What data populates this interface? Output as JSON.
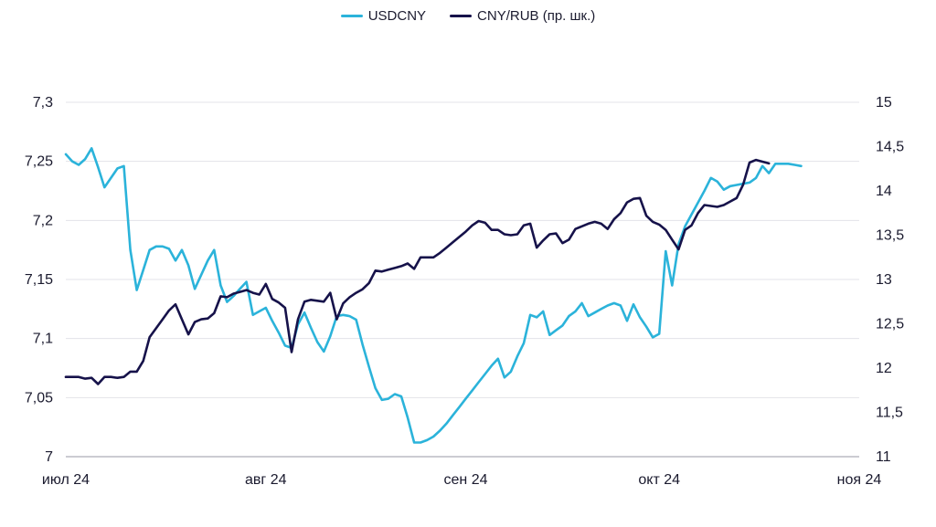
{
  "chart_data": {
    "type": "line",
    "x_ticks": [
      "июл 24",
      "авг 24",
      "сен 24",
      "окт 24",
      "ноя 24"
    ],
    "y_left": {
      "ticks": [
        "7",
        "7,05",
        "7,1",
        "7,15",
        "7,2",
        "7,25",
        "7,3"
      ],
      "range": [
        7.0,
        7.3
      ]
    },
    "y_right": {
      "ticks": [
        "11",
        "11,5",
        "12",
        "12,5",
        "13",
        "13,5",
        "14",
        "14,5",
        "15"
      ],
      "range": [
        11,
        15
      ]
    },
    "legend_position": "top-center",
    "grid": "horizontal",
    "series": [
      {
        "name": "USDCNY",
        "axis": "left",
        "color": "#2BB3DA",
        "points": [
          [
            "2024-07-01",
            7.256
          ],
          [
            "2024-07-02",
            7.25
          ],
          [
            "2024-07-03",
            7.247
          ],
          [
            "2024-07-04",
            7.252
          ],
          [
            "2024-07-05",
            7.261
          ],
          [
            "2024-07-06",
            7.245
          ],
          [
            "2024-07-07",
            7.228
          ],
          [
            "2024-07-08",
            7.236
          ],
          [
            "2024-07-09",
            7.244
          ],
          [
            "2024-07-10",
            7.246
          ],
          [
            "2024-07-11",
            7.175
          ],
          [
            "2024-07-12",
            7.141
          ],
          [
            "2024-07-13",
            7.158
          ],
          [
            "2024-07-14",
            7.175
          ],
          [
            "2024-07-15",
            7.178
          ],
          [
            "2024-07-16",
            7.178
          ],
          [
            "2024-07-17",
            7.176
          ],
          [
            "2024-07-18",
            7.166
          ],
          [
            "2024-07-19",
            7.175
          ],
          [
            "2024-07-20",
            7.162
          ],
          [
            "2024-07-21",
            7.142
          ],
          [
            "2024-07-22",
            7.154
          ],
          [
            "2024-07-23",
            7.166
          ],
          [
            "2024-07-24",
            7.175
          ],
          [
            "2024-07-25",
            7.145
          ],
          [
            "2024-07-26",
            7.131
          ],
          [
            "2024-07-27",
            7.136
          ],
          [
            "2024-07-28",
            7.142
          ],
          [
            "2024-07-29",
            7.148
          ],
          [
            "2024-07-30",
            7.12
          ],
          [
            "2024-07-31",
            7.123
          ],
          [
            "2024-08-01",
            7.126
          ],
          [
            "2024-08-02",
            7.115
          ],
          [
            "2024-08-03",
            7.105
          ],
          [
            "2024-08-04",
            7.094
          ],
          [
            "2024-08-05",
            7.092
          ],
          [
            "2024-08-06",
            7.112
          ],
          [
            "2024-08-07",
            7.122
          ],
          [
            "2024-08-08",
            7.109
          ],
          [
            "2024-08-09",
            7.097
          ],
          [
            "2024-08-10",
            7.089
          ],
          [
            "2024-08-11",
            7.102
          ],
          [
            "2024-08-12",
            7.119
          ],
          [
            "2024-08-13",
            7.12
          ],
          [
            "2024-08-14",
            7.119
          ],
          [
            "2024-08-15",
            7.116
          ],
          [
            "2024-08-16",
            7.095
          ],
          [
            "2024-08-17",
            7.076
          ],
          [
            "2024-08-18",
            7.058
          ],
          [
            "2024-08-19",
            7.048
          ],
          [
            "2024-08-20",
            7.049
          ],
          [
            "2024-08-21",
            7.053
          ],
          [
            "2024-08-22",
            7.051
          ],
          [
            "2024-08-23",
            7.033
          ],
          [
            "2024-08-24",
            7.012
          ],
          [
            "2024-08-25",
            7.012
          ],
          [
            "2024-08-26",
            7.014
          ],
          [
            "2024-08-27",
            7.017
          ],
          [
            "2024-08-28",
            7.022
          ],
          [
            "2024-08-29",
            7.028
          ],
          [
            "2024-08-30",
            7.035
          ],
          [
            "2024-08-31",
            7.042
          ],
          [
            "2024-09-01",
            7.049
          ],
          [
            "2024-09-02",
            7.056
          ],
          [
            "2024-09-03",
            7.063
          ],
          [
            "2024-09-04",
            7.07
          ],
          [
            "2024-09-05",
            7.077
          ],
          [
            "2024-09-06",
            7.083
          ],
          [
            "2024-09-07",
            7.067
          ],
          [
            "2024-09-08",
            7.072
          ],
          [
            "2024-09-09",
            7.085
          ],
          [
            "2024-09-10",
            7.096
          ],
          [
            "2024-09-11",
            7.12
          ],
          [
            "2024-09-12",
            7.118
          ],
          [
            "2024-09-13",
            7.123
          ],
          [
            "2024-09-14",
            7.103
          ],
          [
            "2024-09-15",
            7.107
          ],
          [
            "2024-09-16",
            7.111
          ],
          [
            "2024-09-17",
            7.119
          ],
          [
            "2024-09-18",
            7.123
          ],
          [
            "2024-09-19",
            7.13
          ],
          [
            "2024-09-20",
            7.119
          ],
          [
            "2024-09-21",
            7.122
          ],
          [
            "2024-09-22",
            7.125
          ],
          [
            "2024-09-23",
            7.128
          ],
          [
            "2024-09-24",
            7.13
          ],
          [
            "2024-09-25",
            7.128
          ],
          [
            "2024-09-26",
            7.115
          ],
          [
            "2024-09-27",
            7.129
          ],
          [
            "2024-09-28",
            7.118
          ],
          [
            "2024-09-29",
            7.11
          ],
          [
            "2024-09-30",
            7.101
          ],
          [
            "2024-10-01",
            7.104
          ],
          [
            "2024-10-02",
            7.174
          ],
          [
            "2024-10-03",
            7.145
          ],
          [
            "2024-10-04",
            7.18
          ],
          [
            "2024-10-05",
            7.195
          ],
          [
            "2024-10-06",
            7.205
          ],
          [
            "2024-10-07",
            7.215
          ],
          [
            "2024-10-08",
            7.225
          ],
          [
            "2024-10-09",
            7.236
          ],
          [
            "2024-10-10",
            7.233
          ],
          [
            "2024-10-11",
            7.226
          ],
          [
            "2024-10-12",
            7.229
          ],
          [
            "2024-10-13",
            7.23
          ],
          [
            "2024-10-14",
            7.231
          ],
          [
            "2024-10-15",
            7.232
          ],
          [
            "2024-10-16",
            7.236
          ],
          [
            "2024-10-17",
            7.246
          ],
          [
            "2024-10-18",
            7.24
          ],
          [
            "2024-10-19",
            7.248
          ],
          [
            "2024-10-20",
            7.248
          ],
          [
            "2024-10-21",
            7.248
          ],
          [
            "2024-10-22",
            7.247
          ],
          [
            "2024-10-23",
            7.246
          ]
        ]
      },
      {
        "name": "CNY/RUB (пр. шк.)",
        "axis": "right",
        "color": "#16124A",
        "points": [
          [
            "2024-07-01",
            11.9
          ],
          [
            "2024-07-02",
            11.9
          ],
          [
            "2024-07-03",
            11.9
          ],
          [
            "2024-07-04",
            11.88
          ],
          [
            "2024-07-05",
            11.89
          ],
          [
            "2024-07-06",
            11.82
          ],
          [
            "2024-07-07",
            11.9
          ],
          [
            "2024-07-08",
            11.9
          ],
          [
            "2024-07-09",
            11.89
          ],
          [
            "2024-07-10",
            11.9
          ],
          [
            "2024-07-11",
            11.96
          ],
          [
            "2024-07-12",
            11.96
          ],
          [
            "2024-07-13",
            12.08
          ],
          [
            "2024-07-14",
            12.35
          ],
          [
            "2024-07-15",
            12.45
          ],
          [
            "2024-07-16",
            12.55
          ],
          [
            "2024-07-17",
            12.65
          ],
          [
            "2024-07-18",
            12.72
          ],
          [
            "2024-07-19",
            12.55
          ],
          [
            "2024-07-20",
            12.38
          ],
          [
            "2024-07-21",
            12.52
          ],
          [
            "2024-07-22",
            12.55
          ],
          [
            "2024-07-23",
            12.56
          ],
          [
            "2024-07-24",
            12.62
          ],
          [
            "2024-07-25",
            12.81
          ],
          [
            "2024-07-26",
            12.8
          ],
          [
            "2024-07-27",
            12.84
          ],
          [
            "2024-07-28",
            12.86
          ],
          [
            "2024-07-29",
            12.88
          ],
          [
            "2024-07-30",
            12.85
          ],
          [
            "2024-07-31",
            12.83
          ],
          [
            "2024-08-01",
            12.95
          ],
          [
            "2024-08-02",
            12.78
          ],
          [
            "2024-08-03",
            12.74
          ],
          [
            "2024-08-04",
            12.68
          ],
          [
            "2024-08-05",
            12.18
          ],
          [
            "2024-08-06",
            12.55
          ],
          [
            "2024-08-07",
            12.75
          ],
          [
            "2024-08-08",
            12.77
          ],
          [
            "2024-08-09",
            12.76
          ],
          [
            "2024-08-10",
            12.75
          ],
          [
            "2024-08-11",
            12.85
          ],
          [
            "2024-08-12",
            12.55
          ],
          [
            "2024-08-13",
            12.73
          ],
          [
            "2024-08-14",
            12.8
          ],
          [
            "2024-08-15",
            12.85
          ],
          [
            "2024-08-16",
            12.89
          ],
          [
            "2024-08-17",
            12.96
          ],
          [
            "2024-08-18",
            13.1
          ],
          [
            "2024-08-19",
            13.09
          ],
          [
            "2024-08-20",
            13.11
          ],
          [
            "2024-08-21",
            13.13
          ],
          [
            "2024-08-22",
            13.15
          ],
          [
            "2024-08-23",
            13.18
          ],
          [
            "2024-08-24",
            13.12
          ],
          [
            "2024-08-25",
            13.25
          ],
          [
            "2024-08-26",
            13.25
          ],
          [
            "2024-08-27",
            13.25
          ],
          [
            "2024-08-28",
            13.3
          ],
          [
            "2024-08-29",
            13.36
          ],
          [
            "2024-08-30",
            13.42
          ],
          [
            "2024-08-31",
            13.48
          ],
          [
            "2024-09-01",
            13.54
          ],
          [
            "2024-09-02",
            13.61
          ],
          [
            "2024-09-03",
            13.66
          ],
          [
            "2024-09-04",
            13.64
          ],
          [
            "2024-09-05",
            13.56
          ],
          [
            "2024-09-06",
            13.56
          ],
          [
            "2024-09-07",
            13.51
          ],
          [
            "2024-09-08",
            13.5
          ],
          [
            "2024-09-09",
            13.51
          ],
          [
            "2024-09-10",
            13.61
          ],
          [
            "2024-09-11",
            13.63
          ],
          [
            "2024-09-12",
            13.36
          ],
          [
            "2024-09-13",
            13.44
          ],
          [
            "2024-09-14",
            13.51
          ],
          [
            "2024-09-15",
            13.52
          ],
          [
            "2024-09-16",
            13.41
          ],
          [
            "2024-09-17",
            13.45
          ],
          [
            "2024-09-18",
            13.57
          ],
          [
            "2024-09-19",
            13.6
          ],
          [
            "2024-09-20",
            13.63
          ],
          [
            "2024-09-21",
            13.65
          ],
          [
            "2024-09-22",
            13.63
          ],
          [
            "2024-09-23",
            13.57
          ],
          [
            "2024-09-24",
            13.68
          ],
          [
            "2024-09-25",
            13.75
          ],
          [
            "2024-09-26",
            13.87
          ],
          [
            "2024-09-27",
            13.91
          ],
          [
            "2024-09-28",
            13.92
          ],
          [
            "2024-09-29",
            13.72
          ],
          [
            "2024-09-30",
            13.65
          ],
          [
            "2024-10-01",
            13.62
          ],
          [
            "2024-10-02",
            13.56
          ],
          [
            "2024-10-03",
            13.45
          ],
          [
            "2024-10-04",
            13.34
          ],
          [
            "2024-10-05",
            13.56
          ],
          [
            "2024-10-06",
            13.61
          ],
          [
            "2024-10-07",
            13.75
          ],
          [
            "2024-10-08",
            13.84
          ],
          [
            "2024-10-09",
            13.83
          ],
          [
            "2024-10-10",
            13.82
          ],
          [
            "2024-10-11",
            13.84
          ],
          [
            "2024-10-12",
            13.88
          ],
          [
            "2024-10-13",
            13.92
          ],
          [
            "2024-10-14",
            14.07
          ],
          [
            "2024-10-15",
            14.32
          ],
          [
            "2024-10-16",
            14.35
          ],
          [
            "2024-10-17",
            14.33
          ],
          [
            "2024-10-18",
            14.31
          ]
        ]
      }
    ]
  }
}
